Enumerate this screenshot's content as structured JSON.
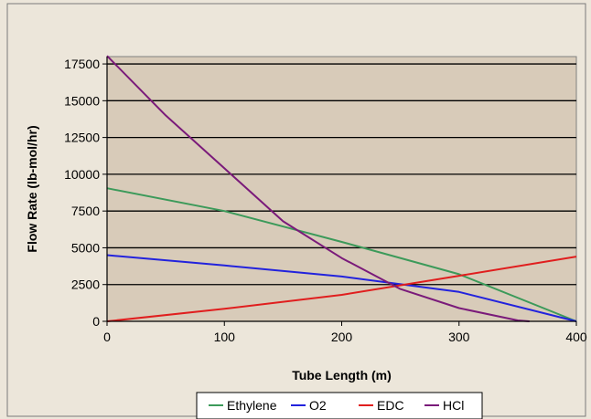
{
  "chart_data": {
    "type": "line",
    "title": "",
    "xlabel": "Tube Length (m)",
    "ylabel": "Flow Rate (lb-mol/hr)",
    "xlim": [
      0,
      400
    ],
    "ylim": [
      0,
      18000
    ],
    "x_ticks": [
      0,
      100,
      200,
      300,
      400
    ],
    "y_ticks": [
      0,
      2500,
      5000,
      7500,
      10000,
      12500,
      15000,
      17500
    ],
    "x_tick_labels": [
      "0",
      "100",
      "200",
      "300",
      "400"
    ],
    "y_tick_labels": [
      "0",
      "2500",
      "5000",
      "7500",
      "10000",
      "12500",
      "15000",
      "17500"
    ],
    "grid": "horizontal",
    "legend_position": "bottom",
    "colors": {
      "plot_background": "#d8cbb9",
      "chart_background": "#ece6da",
      "grid": "#000000"
    },
    "series": [
      {
        "name": "Ethylene",
        "color": "#3c9a5a",
        "x": [
          0,
          100,
          200,
          300,
          400
        ],
        "y": [
          9050,
          7500,
          5400,
          3200,
          0
        ]
      },
      {
        "name": "O2",
        "color": "#2222dd",
        "x": [
          0,
          100,
          200,
          300,
          400
        ],
        "y": [
          4500,
          3800,
          3050,
          2000,
          0
        ]
      },
      {
        "name": "EDC",
        "color": "#e01e1e",
        "x": [
          0,
          100,
          200,
          300,
          400
        ],
        "y": [
          0,
          850,
          1800,
          3100,
          4400
        ]
      },
      {
        "name": "HCl",
        "color": "#7a1a7a",
        "x": [
          0,
          50,
          100,
          150,
          200,
          250,
          300,
          350,
          360
        ],
        "y": [
          18050,
          14000,
          10400,
          6800,
          4300,
          2200,
          900,
          60,
          0
        ]
      }
    ]
  }
}
